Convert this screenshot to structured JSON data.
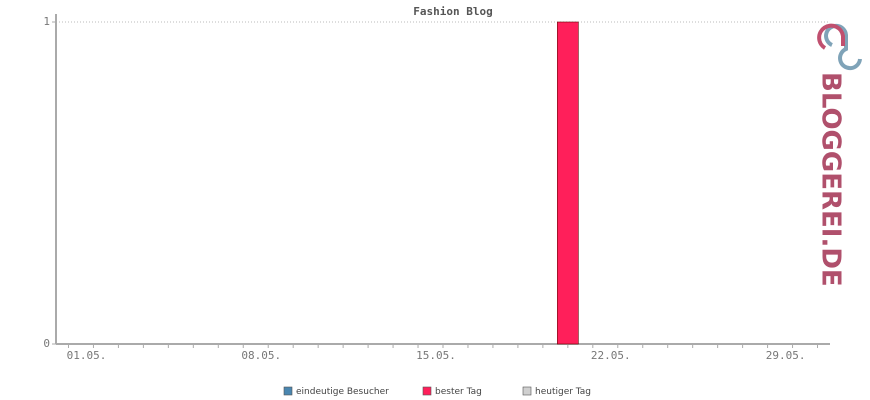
{
  "chart_data": {
    "type": "bar",
    "title": "Fashion Blog",
    "categories": [
      "01.05.",
      null,
      null,
      null,
      null,
      null,
      null,
      "08.05.",
      null,
      null,
      null,
      null,
      null,
      null,
      "15.05.",
      null,
      null,
      null,
      null,
      null,
      null,
      "22.05.",
      null,
      null,
      null,
      null,
      null,
      null,
      "29.05.",
      null,
      null
    ],
    "series": [
      {
        "name": "eindeutige Besucher",
        "color": "#4a86b0",
        "values": [
          0,
          0,
          0,
          0,
          0,
          0,
          0,
          0,
          0,
          0,
          0,
          0,
          0,
          0,
          0,
          0,
          0,
          0,
          0,
          0,
          0,
          0,
          0,
          0,
          0,
          0,
          0,
          0,
          0,
          0,
          0
        ]
      },
      {
        "name": "bester Tag",
        "color": "#ff1f5a",
        "values": [
          null,
          null,
          null,
          null,
          null,
          null,
          null,
          null,
          null,
          null,
          null,
          null,
          null,
          null,
          null,
          null,
          null,
          null,
          null,
          null,
          1,
          null,
          null,
          null,
          null,
          null,
          null,
          null,
          null,
          null,
          null
        ]
      },
      {
        "name": "heutiger Tag",
        "color": "#d0d0d0",
        "values": [
          null,
          null,
          null,
          null,
          null,
          null,
          null,
          null,
          null,
          null,
          null,
          null,
          null,
          null,
          null,
          null,
          null,
          null,
          null,
          null,
          null,
          null,
          null,
          null,
          null,
          null,
          null,
          null,
          null,
          null,
          null
        ]
      }
    ],
    "ylim": [
      0,
      1
    ],
    "yticks": [
      0,
      1
    ],
    "grid": true
  },
  "logo": "BLOGGEREI.DE"
}
